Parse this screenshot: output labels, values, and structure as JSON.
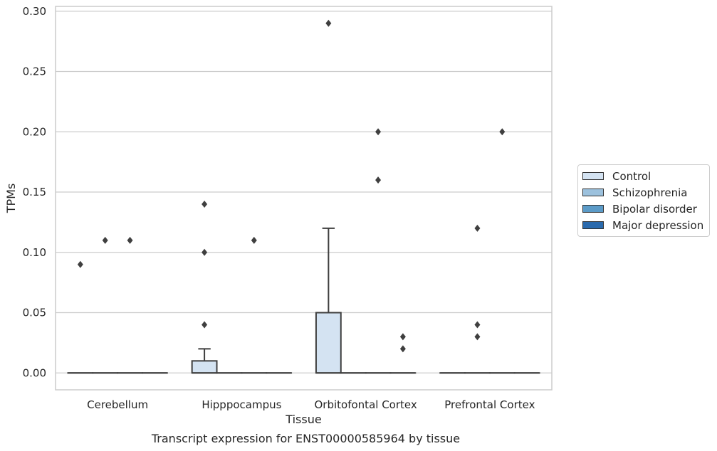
{
  "chart_data": {
    "type": "box",
    "title": "Transcript expression for ENST00000585964 by tissue",
    "xlabel": "Tissue",
    "ylabel": "TPMs",
    "ylim": [
      -0.014,
      0.304
    ],
    "yticks": [
      0.0,
      0.05,
      0.1,
      0.15,
      0.2,
      0.25,
      0.3
    ],
    "ytick_labels": [
      "0.00",
      "0.05",
      "0.10",
      "0.15",
      "0.20",
      "0.25",
      "0.30"
    ],
    "grid": "horizontal",
    "legend_position": "right-center",
    "categories": [
      "Cerebellum",
      "Hipppocampus",
      "Orbitofontal Cortex",
      "Prefrontal Cortex"
    ],
    "series": [
      {
        "name": "Control",
        "color": "#d4e3f2",
        "boxes": [
          {
            "q1": 0,
            "median": 0,
            "q3": 0,
            "whisker_low": 0,
            "whisker_high": 0,
            "outliers": [
              0.09
            ]
          },
          {
            "q1": 0,
            "median": 0,
            "q3": 0.01,
            "whisker_low": 0,
            "whisker_high": 0.02,
            "outliers": [
              0.04,
              0.1,
              0.14
            ]
          },
          {
            "q1": 0,
            "median": 0,
            "q3": 0.05,
            "whisker_low": 0,
            "whisker_high": 0.12,
            "outliers": [
              0.29
            ]
          },
          {
            "q1": 0,
            "median": 0,
            "q3": 0,
            "whisker_low": 0,
            "whisker_high": 0,
            "outliers": []
          }
        ]
      },
      {
        "name": "Schizophrenia",
        "color": "#9cc1dd",
        "boxes": [
          {
            "q1": 0,
            "median": 0,
            "q3": 0,
            "whisker_low": 0,
            "whisker_high": 0,
            "outliers": [
              0.11
            ]
          },
          {
            "q1": 0,
            "median": 0,
            "q3": 0,
            "whisker_low": 0,
            "whisker_high": 0,
            "outliers": []
          },
          {
            "q1": 0,
            "median": 0,
            "q3": 0,
            "whisker_low": 0,
            "whisker_high": 0,
            "outliers": []
          },
          {
            "q1": 0,
            "median": 0,
            "q3": 0,
            "whisker_low": 0,
            "whisker_high": 0,
            "outliers": [
              0.03,
              0.04,
              0.12
            ]
          }
        ]
      },
      {
        "name": "Bipolar disorder",
        "color": "#5b9bc8",
        "boxes": [
          {
            "q1": 0,
            "median": 0,
            "q3": 0,
            "whisker_low": 0,
            "whisker_high": 0,
            "outliers": [
              0.11
            ]
          },
          {
            "q1": 0,
            "median": 0,
            "q3": 0,
            "whisker_low": 0,
            "whisker_high": 0,
            "outliers": [
              0.11
            ]
          },
          {
            "q1": 0,
            "median": 0,
            "q3": 0,
            "whisker_low": 0,
            "whisker_high": 0,
            "outliers": [
              0.16,
              0.2
            ]
          },
          {
            "q1": 0,
            "median": 0,
            "q3": 0,
            "whisker_low": 0,
            "whisker_high": 0,
            "outliers": [
              0.2
            ]
          }
        ]
      },
      {
        "name": "Major depression",
        "color": "#2a6aad",
        "boxes": [
          {
            "q1": 0,
            "median": 0,
            "q3": 0,
            "whisker_low": 0,
            "whisker_high": 0,
            "outliers": []
          },
          {
            "q1": 0,
            "median": 0,
            "q3": 0,
            "whisker_low": 0,
            "whisker_high": 0,
            "outliers": []
          },
          {
            "q1": 0,
            "median": 0,
            "q3": 0,
            "whisker_low": 0,
            "whisker_high": 0,
            "outliers": [
              0.02,
              0.03
            ]
          },
          {
            "q1": 0,
            "median": 0,
            "q3": 0,
            "whisker_low": 0,
            "whisker_high": 0,
            "outliers": []
          }
        ]
      }
    ]
  }
}
